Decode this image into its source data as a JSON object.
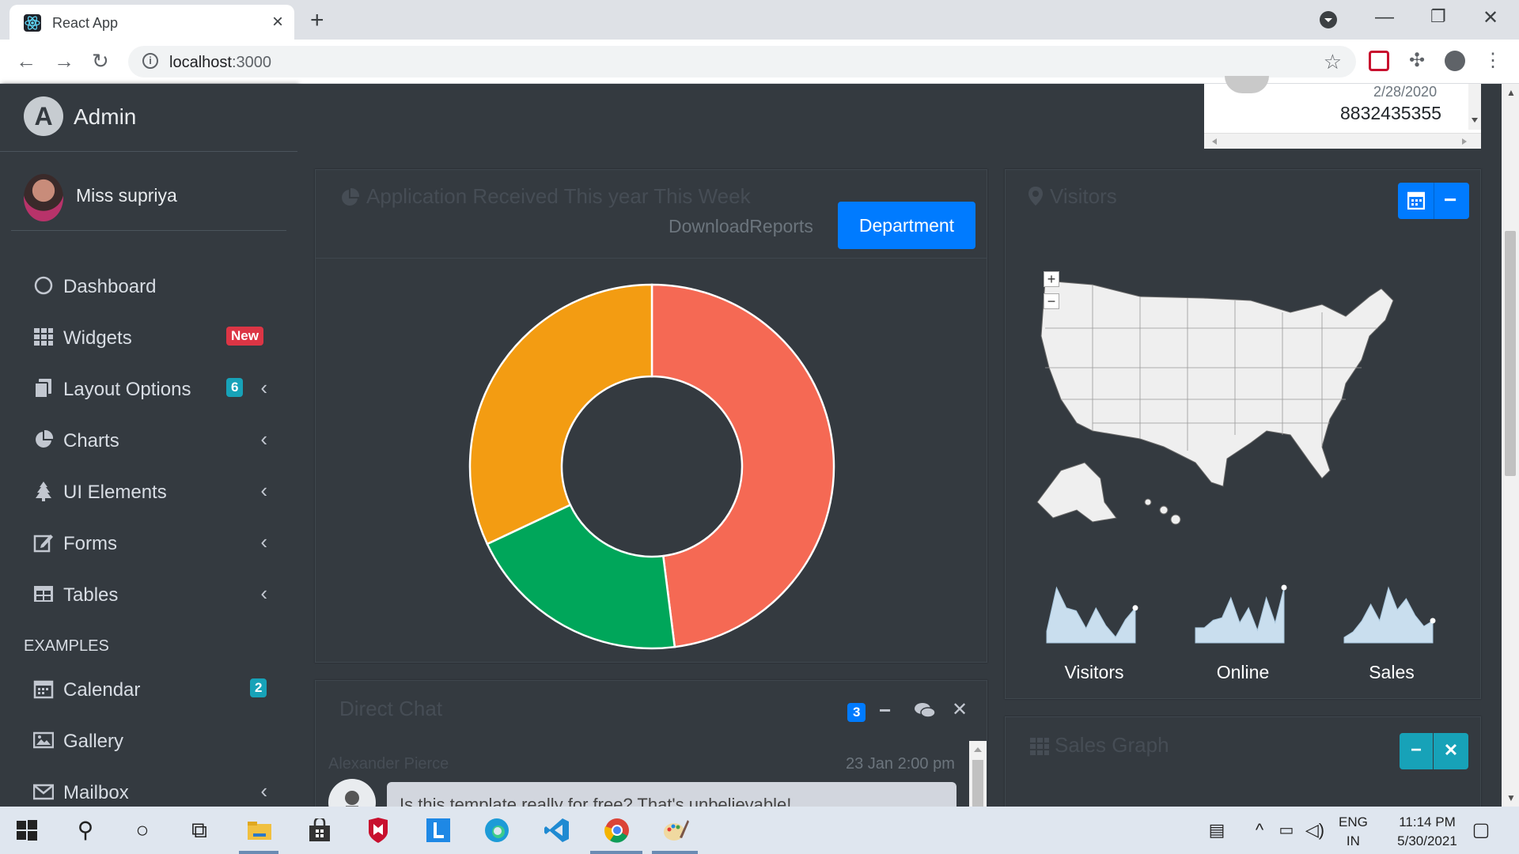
{
  "browser": {
    "tab_title": "React App",
    "url_host": "localhost",
    "url_port": ":3000"
  },
  "sidebar": {
    "brand": "Admin",
    "brand_logo_letter": "A",
    "user_name": "Miss supriya",
    "items": [
      {
        "label": "Dashboard",
        "icon": "circle-icon"
      },
      {
        "label": "Widgets",
        "icon": "grid-icon",
        "badge": "New"
      },
      {
        "label": "Layout Options",
        "icon": "copy-icon",
        "badge": "6"
      },
      {
        "label": "Charts",
        "icon": "pie-chart-icon"
      },
      {
        "label": "UI Elements",
        "icon": "tree-icon"
      },
      {
        "label": "Forms",
        "icon": "edit-icon"
      },
      {
        "label": "Tables",
        "icon": "table-icon"
      }
    ],
    "examples_header": "EXAMPLES",
    "example_items": [
      {
        "label": "Calendar",
        "icon": "calendar-icon",
        "badge": "2"
      },
      {
        "label": "Gallery",
        "icon": "image-icon"
      },
      {
        "label": "Mailbox",
        "icon": "envelope-icon"
      }
    ]
  },
  "top_box": {
    "date": "2/28/2020",
    "phone": "8832435355"
  },
  "application_card": {
    "title": "Application Received This year This Week",
    "link": "DownloadReports",
    "button": "Department"
  },
  "chart_data": {
    "type": "pie",
    "variant": "doughnut",
    "slices": [
      {
        "value": 48,
        "color": "#f56954"
      },
      {
        "value": 20,
        "color": "#00a65a"
      },
      {
        "value": 32,
        "color": "#f39c12"
      }
    ]
  },
  "visitors_card": {
    "title": "Visitors",
    "sparklines": [
      {
        "label": "Visitors",
        "values": [
          20,
          95,
          60,
          55,
          25,
          60,
          30,
          10,
          40,
          60
        ]
      },
      {
        "label": "Online",
        "values": [
          30,
          30,
          45,
          50,
          90,
          40,
          70,
          25,
          90,
          40,
          110
        ]
      },
      {
        "label": "Sales",
        "values": [
          10,
          20,
          40,
          70,
          40,
          100,
          60,
          80,
          50,
          30,
          40
        ]
      }
    ]
  },
  "direct_chat": {
    "title": "Direct Chat",
    "badge": "3",
    "author": "Alexander Pierce",
    "time": "23 Jan 2:00 pm",
    "message": "Is this template really for free? That's unbelievable!"
  },
  "sales_graph": {
    "title": "Sales Graph"
  },
  "taskbar": {
    "lang_top": "ENG",
    "lang_bottom": "IN",
    "time": "11:14 PM",
    "date": "5/30/2021"
  }
}
